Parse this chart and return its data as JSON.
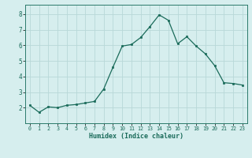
{
  "x": [
    0,
    1,
    2,
    3,
    4,
    5,
    6,
    7,
    8,
    9,
    10,
    11,
    12,
    13,
    14,
    15,
    16,
    17,
    18,
    19,
    20,
    21,
    22,
    23
  ],
  "y": [
    2.15,
    1.7,
    2.05,
    2.0,
    2.15,
    2.2,
    2.3,
    2.4,
    3.2,
    4.6,
    5.95,
    6.05,
    6.5,
    7.2,
    7.95,
    7.6,
    6.1,
    6.55,
    5.95,
    5.45,
    4.7,
    3.6,
    3.55,
    3.45
  ],
  "title": "",
  "xlabel": "Humidex (Indice chaleur)",
  "ylabel": "",
  "line_color": "#1a6b5a",
  "marker_color": "#1a6b5a",
  "bg_color": "#d6eeee",
  "grid_color": "#b8d8d8",
  "xlim": [
    -0.5,
    23.5
  ],
  "ylim": [
    1.0,
    8.6
  ],
  "yticks": [
    2,
    3,
    4,
    5,
    6,
    7,
    8
  ],
  "xticks": [
    0,
    1,
    2,
    3,
    4,
    5,
    6,
    7,
    8,
    9,
    10,
    11,
    12,
    13,
    14,
    15,
    16,
    17,
    18,
    19,
    20,
    21,
    22,
    23
  ]
}
